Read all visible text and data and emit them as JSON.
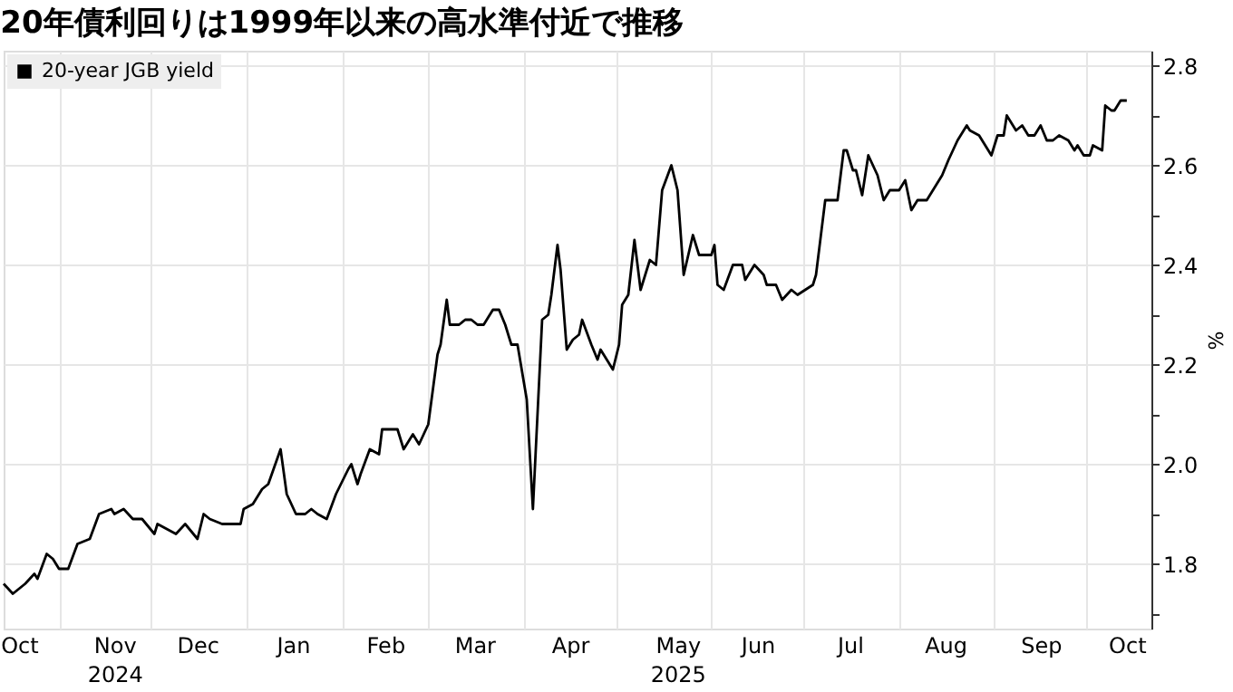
{
  "chart_data": {
    "type": "line",
    "title": "20年債利回りは1999年以来の高水準付近で推移",
    "ylabel": "%",
    "legend": "top left",
    "grid": true,
    "xlim": [
      "2024-10-14",
      "2025-10-22"
    ],
    "xticks": [
      {
        "value": "2024-10-19",
        "label": "Oct"
      },
      {
        "value": "2024-11-01",
        "label": null
      },
      {
        "value": "2024-11-19",
        "label": "Nov\n2024"
      },
      {
        "value": "2024-12-01",
        "label": null
      },
      {
        "value": "2024-12-16",
        "label": "Dec"
      },
      {
        "value": "2025-01-01",
        "label": null
      },
      {
        "value": "2025-01-16",
        "label": "Jan"
      },
      {
        "value": "2025-02-01",
        "label": null
      },
      {
        "value": "2025-02-15",
        "label": "Feb"
      },
      {
        "value": "2025-03-01",
        "label": null
      },
      {
        "value": "2025-03-16",
        "label": "Mar"
      },
      {
        "value": "2025-04-01",
        "label": null
      },
      {
        "value": "2025-04-16",
        "label": "Apr"
      },
      {
        "value": "2025-05-01",
        "label": null
      },
      {
        "value": "2025-05-21",
        "label": "May\n2025"
      },
      {
        "value": "2025-06-01",
        "label": null
      },
      {
        "value": "2025-06-16",
        "label": "Jun"
      },
      {
        "value": "2025-07-01",
        "label": null
      },
      {
        "value": "2025-07-16",
        "label": "Jul"
      },
      {
        "value": "2025-08-01",
        "label": null
      },
      {
        "value": "2025-08-16",
        "label": "Aug"
      },
      {
        "value": "2025-09-01",
        "label": null
      },
      {
        "value": "2025-09-16",
        "label": "Sep"
      },
      {
        "value": "2025-10-01",
        "label": null
      },
      {
        "value": "2025-10-14",
        "label": "Oct"
      }
    ],
    "ylim": [
      1.67,
      2.83
    ],
    "yticks": [
      {
        "value": 1.7,
        "label": null
      },
      1.8,
      {
        "value": 1.9,
        "label": null
      },
      {
        "value": 2,
        "label": "2.0"
      },
      {
        "value": 2.1,
        "label": null
      },
      2.2,
      {
        "value": 2.3,
        "label": null
      },
      2.4,
      {
        "value": 2.5,
        "label": null
      },
      2.6,
      {
        "value": 2.7,
        "label": null
      },
      2.8
    ],
    "series": [
      {
        "name": "20-year JGB yield",
        "color": "#000000",
        "x": [
          "2024-10-14",
          "2024-10-17",
          "2024-10-21",
          "2024-10-24",
          "2024-10-25",
          "2024-10-28",
          "2024-10-30",
          "2024-11-01",
          "2024-11-04",
          "2024-11-07",
          "2024-11-11",
          "2024-11-14",
          "2024-11-18",
          "2024-11-19",
          "2024-11-22",
          "2024-11-25",
          "2024-11-28",
          "2024-12-02",
          "2024-12-03",
          "2024-12-06",
          "2024-12-09",
          "2024-12-12",
          "2024-12-16",
          "2024-12-18",
          "2024-12-20",
          "2024-12-24",
          "2024-12-27",
          "2024-12-30",
          "2024-12-31",
          "2025-01-03",
          "2025-01-06",
          "2025-01-08",
          "2025-01-12",
          "2025-01-14",
          "2025-01-17",
          "2025-01-20",
          "2025-01-22",
          "2025-01-24",
          "2025-01-27",
          "2025-01-30",
          "2025-02-03",
          "2025-02-04",
          "2025-02-06",
          "2025-02-07",
          "2025-02-10",
          "2025-02-13",
          "2025-02-14",
          "2025-02-19",
          "2025-02-21",
          "2025-02-24",
          "2025-02-26",
          "2025-03-01",
          "2025-03-04",
          "2025-03-05",
          "2025-03-07",
          "2025-03-08",
          "2025-03-11",
          "2025-03-13",
          "2025-03-15",
          "2025-03-17",
          "2025-03-19",
          "2025-03-22",
          "2025-03-24",
          "2025-03-26",
          "2025-03-28",
          "2025-03-30",
          "2025-04-02",
          "2025-04-04",
          "2025-04-07",
          "2025-04-09",
          "2025-04-10",
          "2025-04-12",
          "2025-04-13",
          "2025-04-15",
          "2025-04-17",
          "2025-04-19",
          "2025-04-20",
          "2025-04-23",
          "2025-04-25",
          "2025-04-26",
          "2025-04-28",
          "2025-04-30",
          "2025-05-02",
          "2025-05-03",
          "2025-05-05",
          "2025-05-07",
          "2025-05-09",
          "2025-05-12",
          "2025-05-14",
          "2025-05-16",
          "2025-05-19",
          "2025-05-21",
          "2025-05-23",
          "2025-05-26",
          "2025-05-28",
          "2025-06-01",
          "2025-06-02",
          "2025-06-03",
          "2025-06-05",
          "2025-06-08",
          "2025-06-11",
          "2025-06-12",
          "2025-06-15",
          "2025-06-18",
          "2025-06-19",
          "2025-06-22",
          "2025-06-24",
          "2025-06-27",
          "2025-06-29",
          "2025-07-04",
          "2025-07-05",
          "2025-07-08",
          "2025-07-12",
          "2025-07-14",
          "2025-07-15",
          "2025-07-17",
          "2025-07-18",
          "2025-07-20",
          "2025-07-22",
          "2025-07-25",
          "2025-07-27",
          "2025-07-29",
          "2025-08-01",
          "2025-08-03",
          "2025-08-05",
          "2025-08-07",
          "2025-08-10",
          "2025-08-13",
          "2025-08-15",
          "2025-08-17",
          "2025-08-20",
          "2025-08-23",
          "2025-08-24",
          "2025-08-27",
          "2025-08-28",
          "2025-08-31",
          "2025-09-02",
          "2025-09-04",
          "2025-09-05",
          "2025-09-08",
          "2025-09-10",
          "2025-09-12",
          "2025-09-14",
          "2025-09-16",
          "2025-09-18",
          "2025-09-20",
          "2025-09-22",
          "2025-09-25",
          "2025-09-27",
          "2025-09-28",
          "2025-09-30",
          "2025-10-02",
          "2025-10-03",
          "2025-10-06",
          "2025-10-07",
          "2025-10-09",
          "2025-10-10",
          "2025-10-12",
          "2025-10-14"
        ],
        "values": [
          1.76,
          1.74,
          1.76,
          1.78,
          1.77,
          1.82,
          1.81,
          1.79,
          1.79,
          1.84,
          1.85,
          1.9,
          1.91,
          1.9,
          1.91,
          1.89,
          1.89,
          1.86,
          1.88,
          1.87,
          1.86,
          1.88,
          1.85,
          1.9,
          1.89,
          1.88,
          1.88,
          1.88,
          1.91,
          1.92,
          1.95,
          1.96,
          2.03,
          1.94,
          1.9,
          1.9,
          1.91,
          1.9,
          1.89,
          1.94,
          1.99,
          2.0,
          1.96,
          1.98,
          2.03,
          2.02,
          2.07,
          2.07,
          2.03,
          2.06,
          2.04,
          2.08,
          2.22,
          2.24,
          2.33,
          2.28,
          2.28,
          2.29,
          2.29,
          2.28,
          2.28,
          2.31,
          2.31,
          2.28,
          2.24,
          2.24,
          2.13,
          1.91,
          2.29,
          2.3,
          2.34,
          2.44,
          2.39,
          2.23,
          2.25,
          2.26,
          2.29,
          2.24,
          2.21,
          2.23,
          2.21,
          2.19,
          2.24,
          2.32,
          2.34,
          2.45,
          2.35,
          2.41,
          2.4,
          2.55,
          2.6,
          2.55,
          2.38,
          2.46,
          2.42,
          2.42,
          2.44,
          2.36,
          2.35,
          2.4,
          2.4,
          2.37,
          2.4,
          2.38,
          2.36,
          2.36,
          2.33,
          2.35,
          2.34,
          2.36,
          2.38,
          2.53,
          2.53,
          2.63,
          2.63,
          2.59,
          2.59,
          2.54,
          2.62,
          2.58,
          2.53,
          2.55,
          2.55,
          2.57,
          2.51,
          2.53,
          2.53,
          2.56,
          2.58,
          2.61,
          2.65,
          2.68,
          2.67,
          2.66,
          2.65,
          2.62,
          2.66,
          2.66,
          2.7,
          2.67,
          2.68,
          2.66,
          2.66,
          2.68,
          2.65,
          2.65,
          2.66,
          2.65,
          2.63,
          2.64,
          2.62,
          2.62,
          2.64,
          2.63,
          2.72,
          2.71,
          2.71,
          2.73,
          2.73
        ]
      }
    ]
  }
}
